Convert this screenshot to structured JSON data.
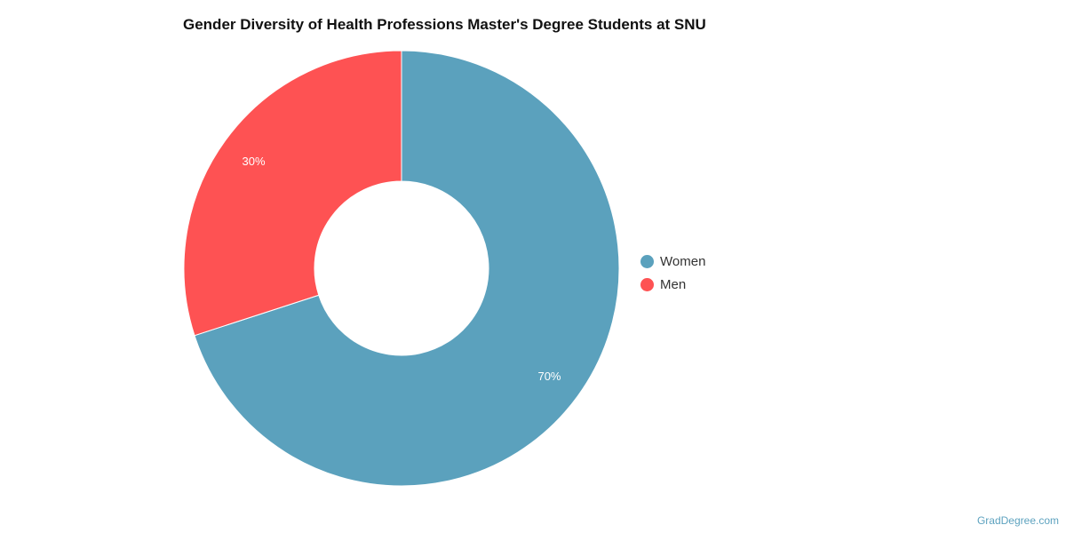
{
  "chart_data": {
    "type": "pie",
    "variant": "donut",
    "title": "Gender Diversity of Health Professions Master's Degree Students at SNU",
    "slices": [
      {
        "label": "Women",
        "value": 70,
        "data_label": "70%",
        "color": "#5ba1bd"
      },
      {
        "label": "Men",
        "value": 30,
        "data_label": "30%",
        "color": "#fe5253"
      }
    ],
    "legend_position": "right"
  },
  "watermark": "GradDegree.com"
}
